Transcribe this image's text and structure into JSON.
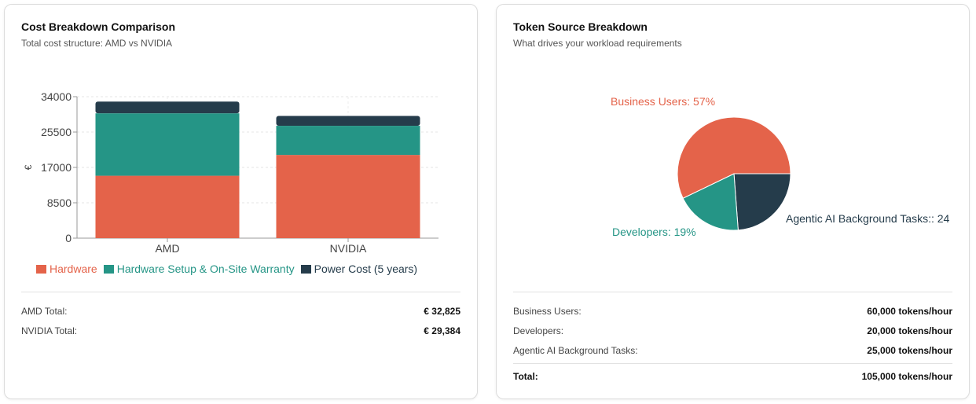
{
  "cost_card": {
    "title": "Cost Breakdown Comparison",
    "subtitle": "Total cost structure: AMD vs NVIDIA",
    "totals": [
      {
        "label": "AMD Total:",
        "value": "€ 32,825"
      },
      {
        "label": "NVIDIA Total:",
        "value": "€ 29,384"
      }
    ]
  },
  "token_card": {
    "title": "Token Source Breakdown",
    "subtitle": "What drives your workload requirements",
    "rows": [
      {
        "label": "Business Users:",
        "value": "60,000 tokens/hour"
      },
      {
        "label": "Developers:",
        "value": "20,000 tokens/hour"
      },
      {
        "label": "Agentic AI Background Tasks:",
        "value": "25,000 tokens/hour"
      }
    ],
    "total": {
      "label": "Total:",
      "value": "105,000 tokens/hour"
    }
  },
  "chart_data": [
    {
      "type": "bar",
      "stacked": true,
      "categories": [
        "AMD",
        "NVIDIA"
      ],
      "ylabel": "€",
      "ylim": [
        0,
        34000
      ],
      "yticks": [
        "0",
        "8500",
        "17000",
        "25500",
        "34000"
      ],
      "grid": true,
      "legend": "bottom",
      "series": [
        {
          "name": "Hardware",
          "values": [
            15000,
            20000
          ],
          "color": "#e4634a"
        },
        {
          "name": "Hardware Setup & On-Site Warranty",
          "values": [
            15000,
            7000
          ],
          "color": "#259586"
        },
        {
          "name": "Power Cost (5 years)",
          "values": [
            2825,
            2384
          ],
          "color": "#253c4b"
        }
      ]
    },
    {
      "type": "pie",
      "slices": [
        {
          "name": "Agentic AI Background Tasks",
          "label": "Agentic AI Background Tasks:: 24",
          "value": 25000,
          "color": "#253c4b"
        },
        {
          "name": "Developers",
          "label": "Developers: 19%",
          "value": 20000,
          "color": "#259586"
        },
        {
          "name": "Business Users",
          "label": "Business Users: 57%",
          "value": 60000,
          "color": "#e4634a"
        }
      ]
    }
  ]
}
